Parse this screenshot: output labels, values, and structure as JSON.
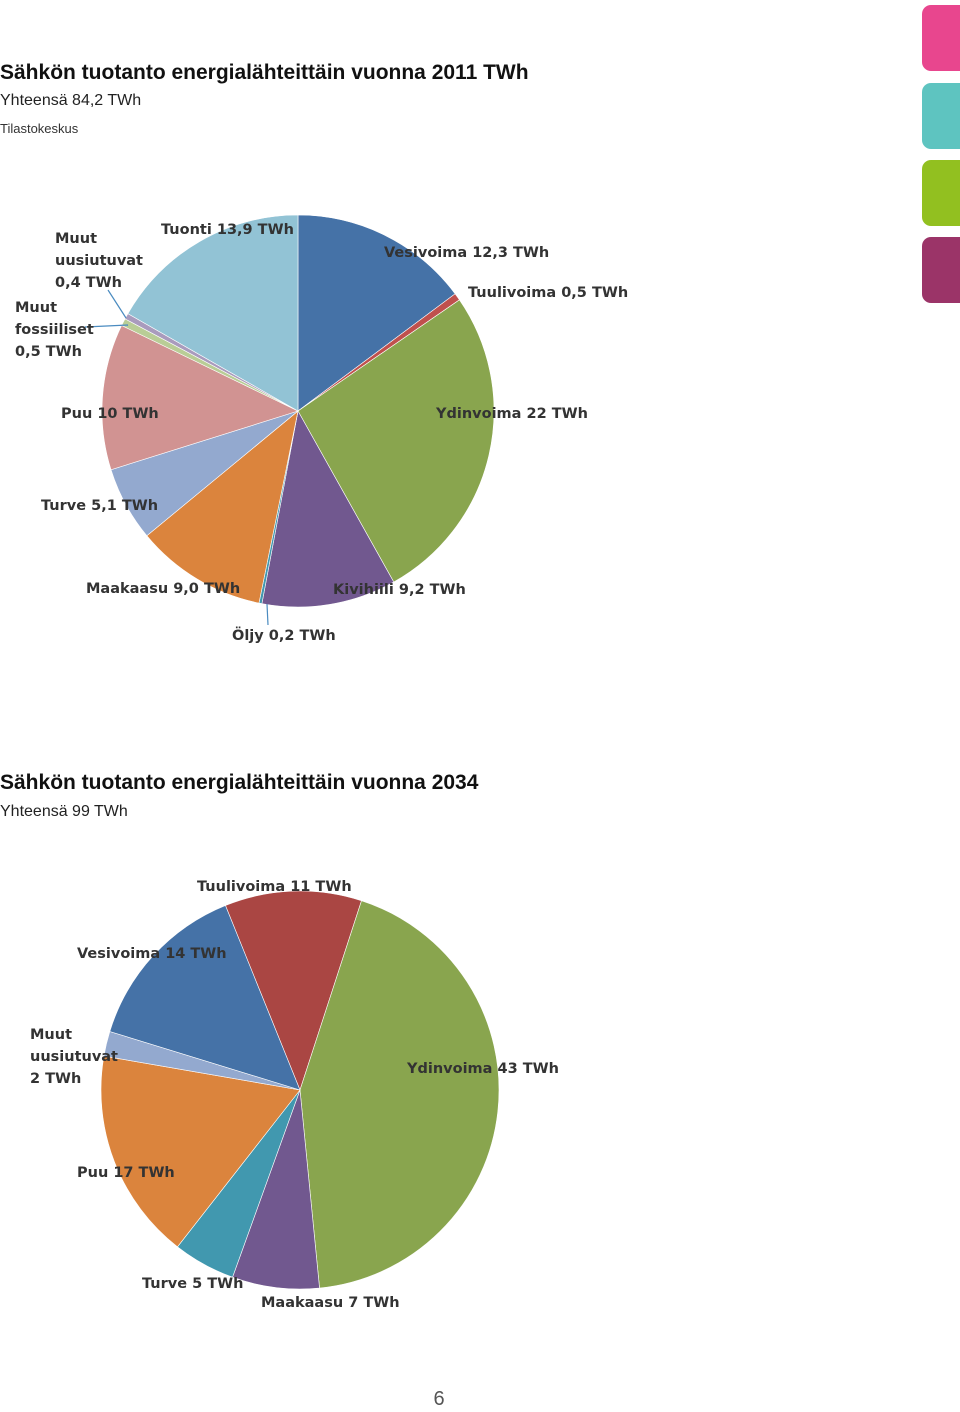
{
  "tabs": [
    {
      "name": "tab-pink",
      "color": "#e8468e"
    },
    {
      "name": "tab-teal",
      "color": "#5ec4c0"
    },
    {
      "name": "tab-green",
      "color": "#92c020"
    },
    {
      "name": "tab-plum",
      "color": "#9b3468"
    }
  ],
  "page_number": "6",
  "chart_data": [
    {
      "type": "pie",
      "title": "Sähkön tuotanto energialähteittäin vuonna 2011 TWh",
      "subtitle": "Yhteensä 84,2 TWh",
      "source": "Tilastokeskus",
      "slices": [
        {
          "name": "Vesivoima",
          "value": 12.3,
          "color": "#4572a7",
          "label": [
            "Vesivoima 12,3 TWh"
          ]
        },
        {
          "name": "Tuulivoima",
          "value": 0.5,
          "color": "#c0504d",
          "label": [
            "Tuulivoima 0,5 TWh"
          ]
        },
        {
          "name": "Ydinvoima",
          "value": 22,
          "color": "#89a54e",
          "label": [
            "Ydinvoima 22 TWh"
          ]
        },
        {
          "name": "Kivihiili",
          "value": 9.2,
          "color": "#71588f",
          "label": [
            "Kivihiili 9,2 TWh"
          ]
        },
        {
          "name": "Öljy",
          "value": 0.2,
          "color": "#4198af",
          "label": [
            "Öljy 0,2 TWh"
          ]
        },
        {
          "name": "Maakaasu",
          "value": 9.0,
          "color": "#db843d",
          "label": [
            "Maakaasu 9,0 TWh"
          ]
        },
        {
          "name": "Turve",
          "value": 5.1,
          "color": "#93a9cf",
          "label": [
            "Turve 5,1 TWh"
          ]
        },
        {
          "name": "Puu",
          "value": 10,
          "color": "#d19392",
          "label": [
            "Puu 10 TWh"
          ]
        },
        {
          "name": "Muut fossiiliset",
          "value": 0.5,
          "color": "#b9cd96",
          "label": [
            "Muut",
            "fossiiliset",
            "0,5 TWh"
          ]
        },
        {
          "name": "Muut uusiutuvat",
          "value": 0.4,
          "color": "#a99bbd",
          "label": [
            "Muut",
            "uusiutuvat",
            "0,4 TWh"
          ]
        },
        {
          "name": "Tuonti",
          "value": 13.9,
          "color": "#92c3d5",
          "label": [
            "Tuonti 13,9 TWh"
          ]
        }
      ]
    },
    {
      "type": "pie",
      "title": "Sähkön tuotanto energialähteittäin vuonna 2034",
      "subtitle": "Yhteensä 99 TWh",
      "slices": [
        {
          "name": "Tuulivoima",
          "value": 11,
          "color": "#aa4643",
          "label": [
            "Tuulivoima 11 TWh"
          ]
        },
        {
          "name": "Ydinvoima",
          "value": 43,
          "color": "#89a54e",
          "label": [
            "Ydinvoima 43 TWh"
          ]
        },
        {
          "name": "Maakaasu",
          "value": 7,
          "color": "#71588f",
          "label": [
            "Maakaasu 7 TWh"
          ]
        },
        {
          "name": "Turve",
          "value": 5,
          "color": "#4198af",
          "label": [
            "Turve 5 TWh"
          ]
        },
        {
          "name": "Puu",
          "value": 17,
          "color": "#db843d",
          "label": [
            "Puu 17 TWh"
          ]
        },
        {
          "name": "Muut uusiutuvat",
          "value": 2,
          "color": "#93a9cf",
          "label": [
            "Muut",
            "uusiutuvat",
            "2 TWh"
          ]
        },
        {
          "name": "Vesivoima",
          "value": 14,
          "color": "#4572a7",
          "label": [
            "Vesivoima 14 TWh"
          ]
        }
      ]
    }
  ]
}
